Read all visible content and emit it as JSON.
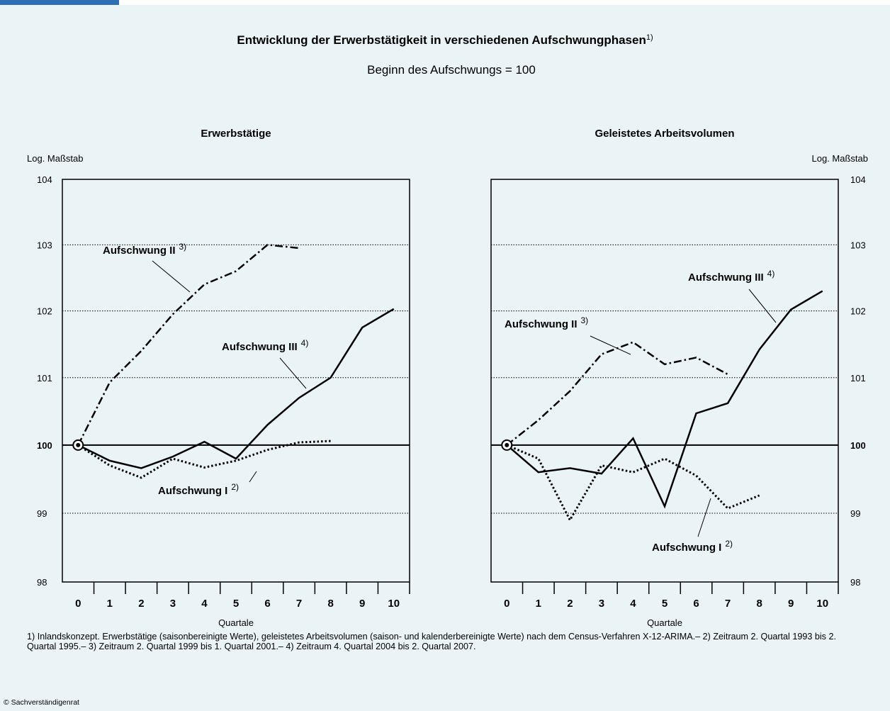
{
  "header": {
    "title": "Entwicklung der Erwerbstätigkeit in verschiedenen Aufschwungphasen",
    "title_note": "1)",
    "subtitle": "Beginn des Aufschwungs  = 100"
  },
  "chart_data": [
    {
      "type": "line",
      "title": "Erwerbstätige",
      "ylabel": "Log. Maßstab",
      "xlabel": "Quartale",
      "yaxis_side": "left",
      "log_scale": true,
      "grid": true,
      "baseline": 100,
      "x": [
        0,
        1,
        2,
        3,
        4,
        5,
        6,
        7,
        8,
        9,
        10
      ],
      "xlim": [
        -0.5,
        10.5
      ],
      "xticks": [
        0,
        1,
        2,
        3,
        4,
        5,
        6,
        7,
        8,
        9,
        10
      ],
      "ylim": [
        98,
        104
      ],
      "yticks": [
        98,
        99,
        100,
        101,
        102,
        103,
        104
      ],
      "series": [
        {
          "name": "Aufschwung I",
          "footnote": "2)",
          "color": "#000000",
          "style": "dotted",
          "values": [
            100,
            99.7,
            99.52,
            99.8,
            99.67,
            99.77,
            99.93,
            100.04,
            100.06,
            null,
            null
          ]
        },
        {
          "name": "Aufschwung II",
          "footnote": "3)",
          "color": "#000000",
          "style": "dashdot",
          "values": [
            100,
            100.93,
            101.4,
            101.95,
            102.4,
            102.6,
            103.0,
            102.95,
            null,
            null,
            null
          ]
        },
        {
          "name": "Aufschwung III",
          "footnote": "4)",
          "color": "#000000",
          "style": "solid",
          "values": [
            100,
            99.77,
            99.66,
            99.83,
            100.05,
            99.8,
            100.3,
            100.7,
            101.0,
            101.75,
            102.03
          ]
        }
      ]
    },
    {
      "type": "line",
      "title": "Geleistetes Arbeitsvolumen",
      "ylabel": "Log. Maßstab",
      "xlabel": "Quartale",
      "yaxis_side": "right",
      "log_scale": true,
      "grid": true,
      "baseline": 100,
      "x": [
        0,
        1,
        2,
        3,
        4,
        5,
        6,
        7,
        8,
        9,
        10
      ],
      "xlim": [
        -0.5,
        10.5
      ],
      "xticks": [
        0,
        1,
        2,
        3,
        4,
        5,
        6,
        7,
        8,
        9,
        10
      ],
      "ylim": [
        98,
        104
      ],
      "yticks": [
        98,
        99,
        100,
        101,
        102,
        103,
        104
      ],
      "series": [
        {
          "name": "Aufschwung I",
          "footnote": "2)",
          "color": "#000000",
          "style": "dotted",
          "values": [
            100,
            99.8,
            98.9,
            99.7,
            99.6,
            99.8,
            99.55,
            99.07,
            99.26,
            null,
            null
          ]
        },
        {
          "name": "Aufschwung II",
          "footnote": "3)",
          "color": "#000000",
          "style": "dashdot",
          "values": [
            100,
            100.37,
            100.8,
            101.35,
            101.53,
            101.2,
            101.3,
            101.05,
            null,
            null,
            null
          ]
        },
        {
          "name": "Aufschwung III",
          "footnote": "4)",
          "color": "#000000",
          "style": "solid",
          "values": [
            100,
            99.6,
            99.66,
            99.58,
            100.1,
            99.1,
            100.47,
            100.62,
            101.42,
            102.02,
            102.3
          ]
        }
      ]
    }
  ],
  "footnotes": "1) Inlandskonzept. Erwerbstätige (saisonbereinigte Werte), geleistetes Arbeitsvolumen (saison- und kalenderbereinigte Werte) nach dem Census-Verfahren X-12-ARIMA.– 2) Zeitraum 2. Quartal 1993 bis 2. Quartal 1995.– 3) Zeitraum  2. Quartal 1999 bis 1. Quartal 2001.– 4) Zeitraum 4. Quartal 2004 bis 2. Quartal 2007.",
  "source": "© Sachverständigenrat"
}
